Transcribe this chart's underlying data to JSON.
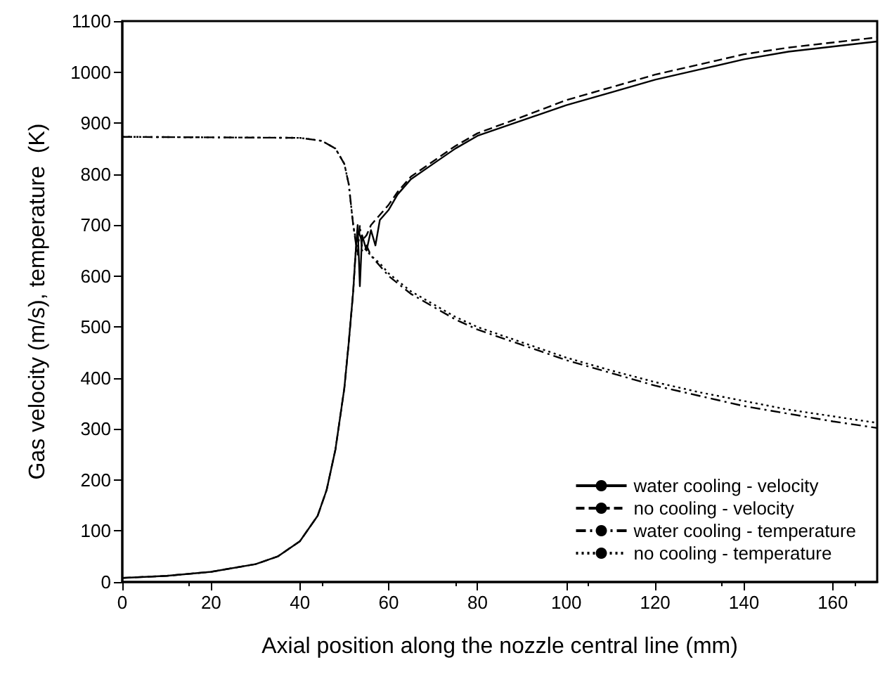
{
  "chart_data": {
    "type": "line",
    "xlabel": "Axial position along the nozzle central line (mm)",
    "ylabel": "Gas velocity (m/s), temperature  (K)",
    "xlim": [
      0,
      170
    ],
    "xticks": [
      0,
      20,
      40,
      60,
      80,
      100,
      120,
      140,
      160
    ],
    "ylim": [
      0,
      1100
    ],
    "yticks": [
      0,
      100,
      200,
      300,
      400,
      500,
      600,
      700,
      800,
      900,
      1000,
      1100
    ],
    "grid": false,
    "legend": "bottom right",
    "marker": "none",
    "series": [
      {
        "name": "water cooling - velocity",
        "color": "#000000",
        "line_style": "solid",
        "x": [
          0,
          10,
          20,
          30,
          35,
          40,
          44,
          46,
          48,
          50,
          51,
          52,
          52.5,
          53,
          53.5,
          54,
          55,
          56,
          57,
          58,
          60,
          62,
          65,
          70,
          75,
          80,
          90,
          100,
          110,
          120,
          130,
          140,
          150,
          160,
          170
        ],
        "values": [
          8,
          12,
          20,
          35,
          50,
          80,
          130,
          180,
          260,
          380,
          470,
          570,
          640,
          700,
          580,
          680,
          650,
          690,
          660,
          710,
          730,
          760,
          790,
          820,
          850,
          875,
          905,
          935,
          960,
          985,
          1005,
          1025,
          1040,
          1050,
          1060
        ]
      },
      {
        "name": "no cooling - velocity",
        "color": "#000000",
        "line_style": "dashed",
        "x": [
          0,
          10,
          20,
          30,
          35,
          40,
          44,
          46,
          48,
          50,
          51,
          52,
          52.5,
          53,
          54,
          55,
          56,
          58,
          60,
          62,
          65,
          70,
          75,
          80,
          90,
          100,
          110,
          120,
          130,
          140,
          150,
          160,
          170
        ],
        "values": [
          8,
          12,
          20,
          35,
          50,
          80,
          130,
          180,
          260,
          380,
          470,
          570,
          640,
          690,
          670,
          680,
          700,
          720,
          740,
          765,
          795,
          825,
          855,
          880,
          912,
          945,
          970,
          995,
          1015,
          1035,
          1048,
          1058,
          1068
        ]
      },
      {
        "name": "water cooling - temperature",
        "color": "#000000",
        "line_style": "dashdot",
        "x": [
          0,
          40,
          45,
          48,
          50,
          51,
          52,
          53,
          53.5,
          54,
          55,
          56,
          58,
          60,
          65,
          70,
          75,
          80,
          90,
          100,
          110,
          120,
          130,
          140,
          150,
          160,
          170
        ],
        "values": [
          873,
          871,
          865,
          850,
          820,
          780,
          700,
          640,
          700,
          650,
          660,
          640,
          620,
          600,
          565,
          540,
          515,
          495,
          465,
          435,
          410,
          385,
          365,
          345,
          330,
          315,
          302
        ]
      },
      {
        "name": "no cooling - temperature",
        "color": "#000000",
        "line_style": "dotted",
        "x": [
          0,
          40,
          45,
          48,
          50,
          51,
          52,
          53,
          54,
          55,
          56,
          58,
          60,
          65,
          70,
          75,
          80,
          90,
          100,
          110,
          120,
          130,
          140,
          150,
          160,
          170
        ],
        "values": [
          873,
          871,
          865,
          850,
          820,
          780,
          700,
          650,
          660,
          650,
          640,
          625,
          605,
          570,
          545,
          520,
          500,
          470,
          440,
          415,
          392,
          372,
          355,
          338,
          325,
          312
        ]
      }
    ]
  }
}
